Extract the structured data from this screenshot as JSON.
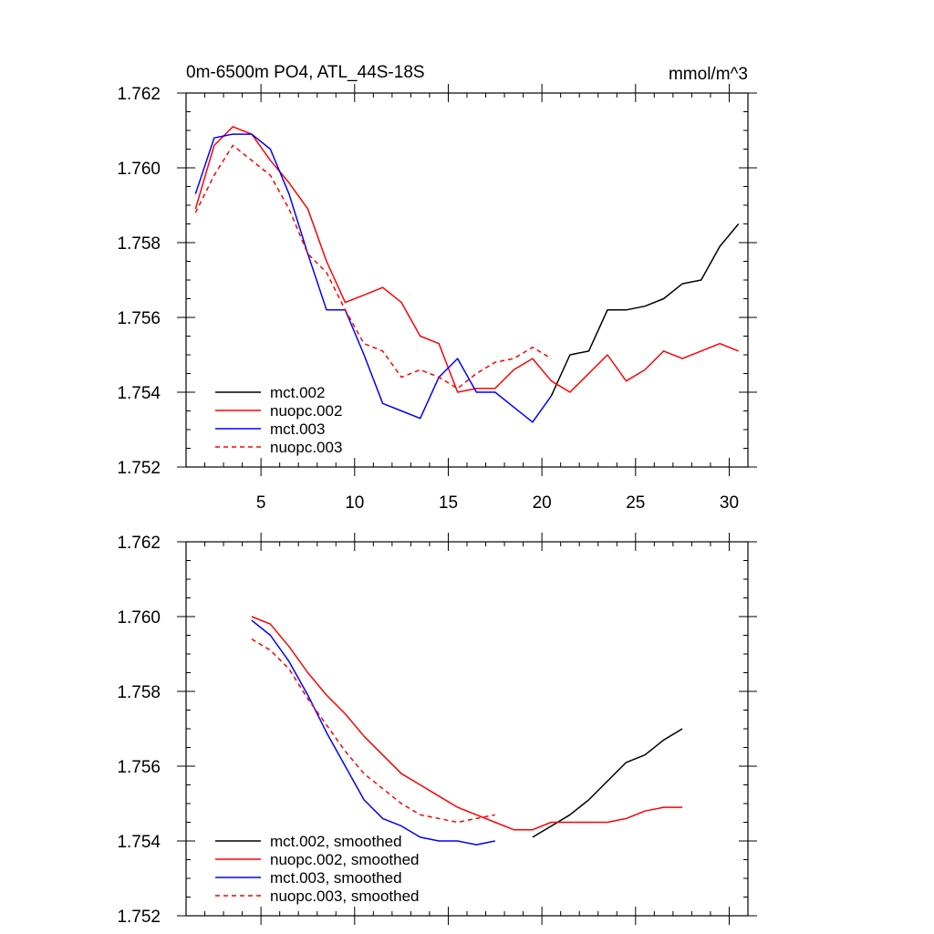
{
  "figure": {
    "title": "0m-6500m PO4, ATL_44S-18S",
    "units": "mmol/m^3"
  },
  "chart_data": [
    {
      "type": "line",
      "title": "0m-6500m PO4, ATL_44S-18S",
      "units": "mmol/m^3",
      "xlim": [
        1,
        31
      ],
      "ylim": [
        1.752,
        1.762
      ],
      "xticks": [
        5,
        10,
        15,
        20,
        25,
        30
      ],
      "yticks": [
        "1.752",
        "1.754",
        "1.756",
        "1.758",
        "1.760",
        "1.762"
      ],
      "legend_position": "bottom-left",
      "series": [
        {
          "name": "mct.002",
          "color": "#000000",
          "dash": false,
          "x": [
            20.5,
            21.5,
            22.5,
            23.5,
            24.5,
            25.5,
            26.5,
            27.5,
            28.5,
            29.5,
            30.5
          ],
          "y": [
            1.7539,
            1.755,
            1.7551,
            1.7562,
            1.7562,
            1.7563,
            1.7565,
            1.7569,
            1.757,
            1.7579,
            1.7585
          ]
        },
        {
          "name": "nuopc.002",
          "color": "#ff0000",
          "dash": false,
          "x": [
            1.5,
            2.5,
            3.5,
            4.5,
            5.5,
            6.5,
            7.5,
            8.5,
            9.5,
            10.5,
            11.5,
            12.5,
            13.5,
            14.5,
            15.5,
            16.5,
            17.5,
            18.5,
            19.5,
            20.5,
            21.5,
            22.5,
            23.5,
            24.5,
            25.5,
            26.5,
            27.5,
            28.5,
            29.5,
            30.5
          ],
          "y": [
            1.7589,
            1.7606,
            1.7611,
            1.7609,
            1.7602,
            1.7596,
            1.7589,
            1.7575,
            1.7564,
            1.7566,
            1.7568,
            1.7564,
            1.7555,
            1.7553,
            1.754,
            1.7541,
            1.7541,
            1.7546,
            1.7549,
            1.7543,
            1.754,
            1.7545,
            1.755,
            1.7543,
            1.7546,
            1.7551,
            1.7549,
            1.7551,
            1.7553,
            1.7551
          ]
        },
        {
          "name": "mct.003",
          "color": "#0000ff",
          "dash": false,
          "x": [
            1.5,
            2.5,
            3.5,
            4.5,
            5.5,
            6.5,
            7.5,
            8.5,
            9.5,
            10.5,
            11.5,
            12.5,
            13.5,
            14.5,
            15.5,
            16.5,
            17.5,
            18.5,
            19.5,
            20.5
          ],
          "y": [
            1.7593,
            1.7608,
            1.7609,
            1.7609,
            1.7605,
            1.7593,
            1.7577,
            1.7562,
            1.7562,
            1.755,
            1.7537,
            1.7535,
            1.7533,
            1.7544,
            1.7549,
            1.754,
            1.754,
            1.7536,
            1.7532,
            1.7539
          ]
        },
        {
          "name": "nuopc.003",
          "color": "#ff0000",
          "dash": true,
          "x": [
            1.5,
            2.5,
            3.5,
            4.5,
            5.5,
            6.5,
            7.5,
            8.5,
            9.5,
            10.5,
            11.5,
            12.5,
            13.5,
            14.5,
            15.5,
            16.5,
            17.5,
            18.5,
            19.5,
            20.5
          ],
          "y": [
            1.7588,
            1.7598,
            1.7606,
            1.7602,
            1.7598,
            1.7589,
            1.7577,
            1.7572,
            1.7562,
            1.7553,
            1.7551,
            1.7544,
            1.7546,
            1.7544,
            1.7541,
            1.7545,
            1.7548,
            1.7549,
            1.7552,
            1.7549
          ]
        }
      ]
    },
    {
      "type": "line",
      "xlim": [
        1,
        31
      ],
      "ylim": [
        1.752,
        1.762
      ],
      "yticks": [
        "1.752",
        "1.754",
        "1.756",
        "1.758",
        "1.760",
        "1.762"
      ],
      "legend_position": "bottom-left",
      "series": [
        {
          "name": "mct.002, smoothed",
          "color": "#000000",
          "dash": false,
          "x": [
            19.5,
            20.5,
            21.5,
            22.5,
            23.5,
            24.5,
            25.5,
            26.5,
            27.5
          ],
          "y": [
            1.7541,
            1.7544,
            1.7547,
            1.7551,
            1.7556,
            1.7561,
            1.7563,
            1.7567,
            1.757
          ]
        },
        {
          "name": "nuopc.002, smoothed",
          "color": "#ff0000",
          "dash": false,
          "x": [
            4.5,
            5.5,
            6.5,
            7.5,
            8.5,
            9.5,
            10.5,
            11.5,
            12.5,
            13.5,
            14.5,
            15.5,
            16.5,
            17.5,
            18.5,
            19.5,
            20.5,
            21.5,
            22.5,
            23.5,
            24.5,
            25.5,
            26.5,
            27.5
          ],
          "y": [
            1.76,
            1.7598,
            1.7592,
            1.7585,
            1.7579,
            1.7574,
            1.7568,
            1.7563,
            1.7558,
            1.7555,
            1.7552,
            1.7549,
            1.7547,
            1.7545,
            1.7543,
            1.7543,
            1.7545,
            1.7545,
            1.7545,
            1.7545,
            1.7546,
            1.7548,
            1.7549,
            1.7549
          ]
        },
        {
          "name": "mct.003, smoothed",
          "color": "#0000ff",
          "dash": false,
          "x": [
            4.5,
            5.5,
            6.5,
            7.5,
            8.5,
            9.5,
            10.5,
            11.5,
            12.5,
            13.5,
            14.5,
            15.5,
            16.5,
            17.5
          ],
          "y": [
            1.7599,
            1.7595,
            1.7588,
            1.7579,
            1.7569,
            1.756,
            1.7551,
            1.7546,
            1.7544,
            1.7541,
            1.754,
            1.754,
            1.7539,
            1.754
          ]
        },
        {
          "name": "nuopc.003, smoothed",
          "color": "#ff0000",
          "dash": true,
          "x": [
            4.5,
            5.5,
            6.5,
            7.5,
            8.5,
            9.5,
            10.5,
            11.5,
            12.5,
            13.5,
            14.5,
            15.5,
            16.5,
            17.5
          ],
          "y": [
            1.7594,
            1.7591,
            1.7586,
            1.7578,
            1.7571,
            1.7564,
            1.7558,
            1.7554,
            1.755,
            1.7547,
            1.7546,
            1.7545,
            1.7546,
            1.7547
          ]
        }
      ]
    }
  ]
}
